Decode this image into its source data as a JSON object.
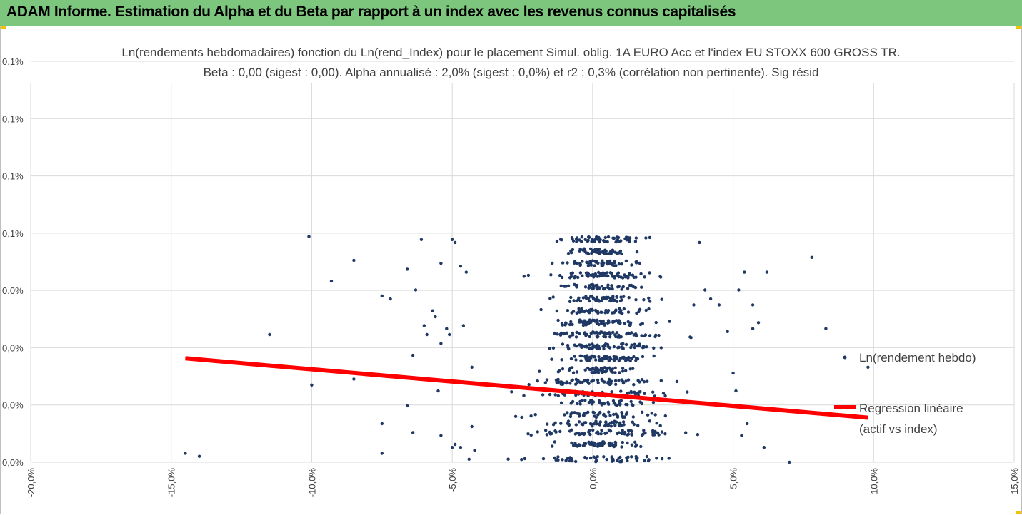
{
  "header": {
    "title": "ADAM Informe. Estimation du Alpha et du Beta par rapport à un index avec les revenus connus capitalisés"
  },
  "colors": {
    "header_bg": "#7dc67e",
    "corner_accent": "#f5c400",
    "points": "#203864",
    "regression": "#ff0000",
    "grid": "#d9d9d9",
    "text": "#404040"
  },
  "chart_data": {
    "type": "scatter",
    "title": "Ln(rendements hebdomadaires) fonction du Ln(rend_Index) pour le placement Simul. oblig. 1A EURO Acc et l'index EU STOXX 600 GROSS TR.",
    "subtitle": "Beta : 0,00 (sigest : 0,00). Alpha annualisé : 2,0% (sigest : 0,0%) et r2 : 0,3% (corrélation non pertinente). Sig résid",
    "xlabel": "",
    "ylabel": "",
    "xlim": [
      -0.2,
      0.15
    ],
    "ylim": [
      -0.00025,
      0.0011
    ],
    "x_tick_labels": [
      "-20,0%",
      "-15,0%",
      "-10,0%",
      "-5,0%",
      "0,0%",
      "5,0%",
      "10,0%",
      "15,0%"
    ],
    "y_tick_labels": [
      "0,1%",
      "0,1%",
      "0,1%",
      "0,1%",
      "0,0%",
      "0,0%",
      "0,0%",
      "0,0%"
    ],
    "grid": true,
    "legend_position": "right",
    "series": [
      {
        "name": "Ln(rendement hebdo)",
        "style": "points",
        "outliers": [
          [
            -0.145,
            -0.00022
          ],
          [
            -0.14,
            -0.00023
          ],
          [
            -0.115,
            0.00018
          ],
          [
            -0.101,
            0.00051
          ],
          [
            -0.1,
            1e-05
          ],
          [
            -0.093,
            0.00036
          ],
          [
            -0.085,
            0.00043
          ],
          [
            -0.085,
            3e-05
          ],
          [
            -0.075,
            0.00031
          ],
          [
            -0.075,
            -0.00022
          ],
          [
            -0.075,
            -0.00012
          ],
          [
            -0.072,
            0.0003
          ],
          [
            -0.066,
            0.0004
          ],
          [
            -0.066,
            -6e-05
          ],
          [
            -0.064,
            -0.00015
          ],
          [
            -0.064,
            0.00011
          ],
          [
            -0.063,
            0.00033
          ],
          [
            -0.061,
            0.0005
          ],
          [
            -0.06,
            0.00021
          ],
          [
            -0.059,
            0.00018
          ],
          [
            -0.057,
            0.00026
          ],
          [
            -0.056,
            0.00024
          ],
          [
            -0.055,
            -1e-05
          ],
          [
            -0.054,
            0.00015
          ],
          [
            -0.054,
            -0.00016
          ],
          [
            -0.054,
            0.00042
          ],
          [
            -0.052,
            0.0002
          ],
          [
            -0.051,
            0.00018
          ],
          [
            -0.05,
            0.0005
          ],
          [
            -0.05,
            -0.0002
          ],
          [
            -0.049,
            -0.00019
          ],
          [
            -0.049,
            0.00049
          ],
          [
            -0.047,
            0.00041
          ],
          [
            -0.047,
            -0.0002
          ],
          [
            -0.046,
            0.00021
          ],
          [
            -0.045,
            0.00039
          ],
          [
            -0.044,
            -0.00024
          ],
          [
            -0.043,
            -0.00013
          ],
          [
            -0.043,
            7e-05
          ],
          [
            -0.042,
            -0.00021
          ],
          [
            0.035,
            0.00017
          ],
          [
            0.036,
            0.00028
          ],
          [
            0.038,
            0.00049
          ],
          [
            0.04,
            0.00033
          ],
          [
            0.042,
            0.0003
          ],
          [
            0.045,
            0.00028
          ],
          [
            0.048,
            0.00019
          ],
          [
            0.05,
            5e-05
          ],
          [
            0.051,
            -1e-05
          ],
          [
            0.052,
            0.00033
          ],
          [
            0.053,
            -0.00016
          ],
          [
            0.054,
            0.00039
          ],
          [
            0.055,
            -0.00012
          ],
          [
            0.057,
            0.00028
          ],
          [
            0.057,
            0.0002
          ],
          [
            0.059,
            0.00022
          ],
          [
            0.061,
            -0.0002
          ],
          [
            0.062,
            0.00039
          ],
          [
            0.07,
            -0.00025
          ],
          [
            0.078,
            0.00044
          ],
          [
            0.083,
            0.0002
          ],
          [
            0.098,
            7e-05
          ]
        ]
      },
      {
        "name": "Regression linéaire (actif vs index)",
        "style": "line",
        "points": [
          [
            -0.145,
            0.0001
          ],
          [
            0.098,
            -0.0001
          ]
        ]
      }
    ]
  },
  "legend": {
    "series1_label": "Ln(rendement hebdo)",
    "series2_label_line1": "Regression linéaire",
    "series2_label_line2": "(actif vs index)"
  }
}
